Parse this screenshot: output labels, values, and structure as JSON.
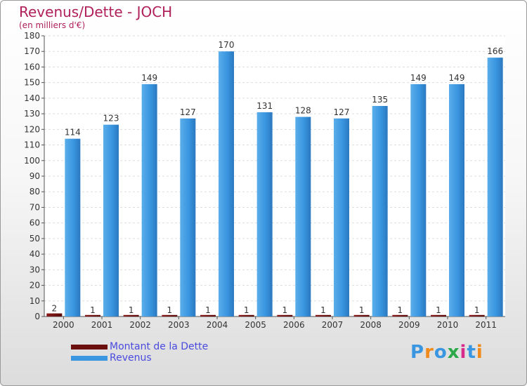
{
  "chart_data": {
    "type": "bar",
    "title": "Revenus/Dette - JOCH",
    "subtitle": "(en milliers d'€)",
    "categories": [
      "2000",
      "2001",
      "2002",
      "2003",
      "2004",
      "2005",
      "2006",
      "2007",
      "2008",
      "2009",
      "2010",
      "2011"
    ],
    "series": [
      {
        "name": "Montant de la Dette",
        "values": [
          2,
          1,
          1,
          1,
          1,
          1,
          1,
          1,
          1,
          1,
          1,
          1
        ],
        "color": "#6b0f0f"
      },
      {
        "name": "Revenus",
        "values": [
          114,
          123,
          149,
          127,
          170,
          131,
          128,
          127,
          135,
          149,
          149,
          166
        ],
        "color": "#3a96e0"
      }
    ],
    "ylim": [
      0,
      180
    ],
    "yticks": [
      0,
      10,
      20,
      30,
      40,
      50,
      60,
      70,
      80,
      90,
      100,
      110,
      120,
      130,
      140,
      150,
      160,
      170,
      180
    ],
    "grid": true
  },
  "title_color": "#b0205a",
  "legend_text_color": "#4a4ae0",
  "logo": {
    "text": "Proxiti",
    "letter_colors": [
      "#3a96e0",
      "#f08a1a",
      "#3a96e0",
      "#2aa84a",
      "#d82a8a",
      "#3a96e0",
      "#f08a1a"
    ]
  }
}
